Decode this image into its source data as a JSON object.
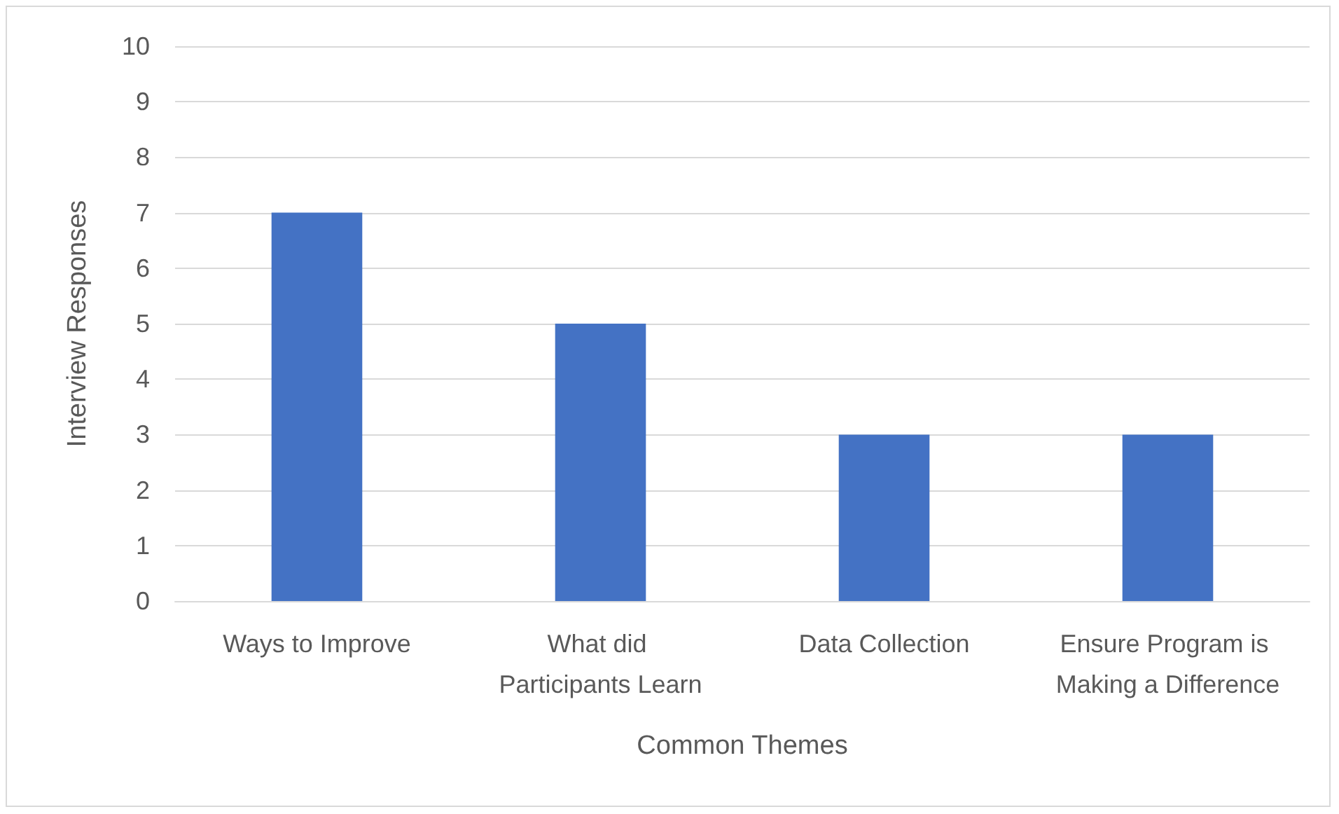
{
  "chart_data": {
    "type": "bar",
    "xlabel": "Common Themes",
    "ylabel": "Interview Responses",
    "categories": [
      "Ways to Improve",
      "What did Participants Learn",
      "Data Collection",
      "Ensure Program is Making a Difference"
    ],
    "values": [
      7,
      5,
      3,
      3
    ],
    "color": "#4472c4",
    "ylim": [
      0,
      10
    ],
    "yticks": [
      0,
      1,
      2,
      3,
      4,
      5,
      6,
      7,
      8,
      9,
      10
    ],
    "grid": "y"
  }
}
